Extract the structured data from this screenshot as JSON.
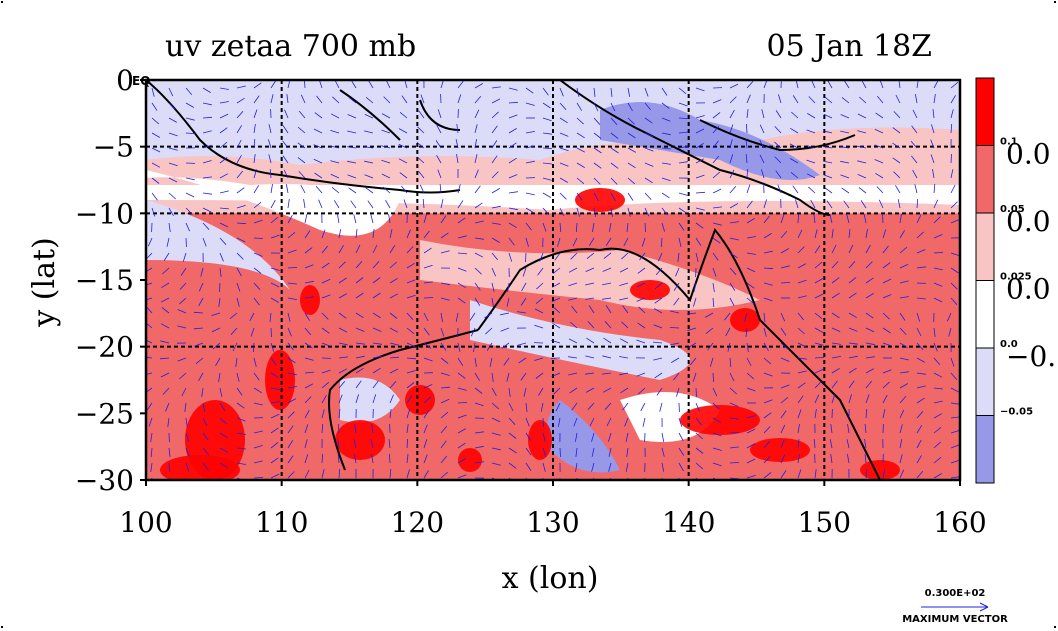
{
  "chart_data": {
    "type": "heatmap",
    "title_left": "uv zetaa 700 mb",
    "title_right": "05 Jan 18Z",
    "xlabel": "x (lon)",
    "ylabel": "y (lat)",
    "xlim": [
      100,
      160
    ],
    "ylim": [
      -30,
      0
    ],
    "x_ticks": [
      "100",
      "110",
      "120",
      "130",
      "140",
      "150",
      "160"
    ],
    "y_ticks": [
      "0",
      "−5",
      "−10",
      "−15",
      "−20",
      "−25",
      "−30"
    ],
    "y_tick_values": [
      0,
      -5,
      -10,
      -15,
      -20,
      -25,
      -30
    ],
    "x_tick_values": [
      100,
      110,
      120,
      130,
      140,
      150,
      160
    ],
    "grid_lon": [
      110,
      120,
      130,
      140,
      150
    ],
    "grid_lat": [
      -5,
      -10,
      -20
    ],
    "eq_label": "EQ",
    "colorbar": {
      "levels_small": [
        "0.1",
        "0.05",
        "0.025",
        "0.0",
        "−0.05"
      ],
      "levels_large": [
        "0.0",
        "0.0",
        "0.0",
        "−0."
      ],
      "colors": [
        "#ff0000",
        "#f06868",
        "#f8c4c4",
        "#ffffff",
        "#dcdcf8",
        "#9898e8"
      ]
    },
    "maximum_vector": {
      "value": "0.300E+02",
      "label": "MAXIMUM VECTOR"
    },
    "colors": {
      "strong_positive": "#ff0000",
      "positive": "#f06868",
      "weak_positive": "#f8c4c4",
      "neutral": "#ffffff",
      "weak_negative": "#dcdcf8",
      "negative": "#9898e8",
      "vector": "#2020e0",
      "coast": "#000000",
      "contour": "#e00000"
    }
  }
}
